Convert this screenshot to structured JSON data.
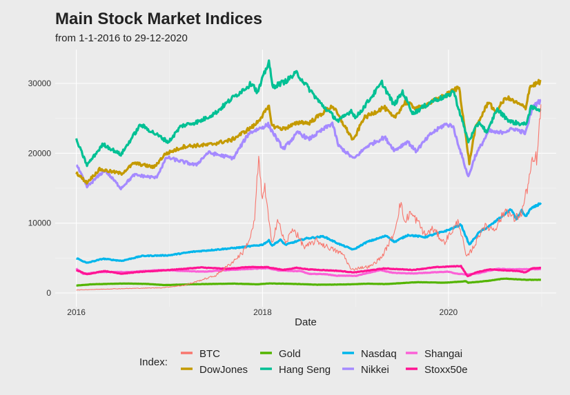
{
  "chart_data": {
    "type": "line",
    "title": "Main Stock Market Indices",
    "subtitle": "from 1-1-2016 to 29-12-2020",
    "xlabel": "Date",
    "ylabel": "",
    "x_range": [
      "2016-01-01",
      "2020-12-29"
    ],
    "ylim": [
      0,
      34000
    ],
    "x_ticks": [
      "2016",
      "2018",
      "2020"
    ],
    "y_ticks": [
      "0",
      "10000",
      "20000",
      "30000"
    ],
    "y_tick_values": [
      0,
      10000,
      20000,
      30000
    ],
    "grid": true,
    "legend_title": "Index:",
    "legend_position": "bottom",
    "series": [
      {
        "name": "BTC",
        "color": "#F8766D",
        "points": [
          [
            "2016-01-01",
            430
          ],
          [
            "2016-06-01",
            600
          ],
          [
            "2016-12-01",
            750
          ],
          [
            "2017-03-01",
            1100
          ],
          [
            "2017-05-01",
            1800
          ],
          [
            "2017-07-01",
            2500
          ],
          [
            "2017-09-01",
            4300
          ],
          [
            "2017-10-15",
            5800
          ],
          [
            "2017-11-15",
            8000
          ],
          [
            "2017-12-01",
            10500
          ],
          [
            "2017-12-17",
            19500
          ],
          [
            "2017-12-28",
            14000
          ],
          [
            "2018-01-10",
            15000
          ],
          [
            "2018-02-06",
            7000
          ],
          [
            "2018-03-01",
            10500
          ],
          [
            "2018-04-01",
            7000
          ],
          [
            "2018-05-01",
            9300
          ],
          [
            "2018-06-15",
            6500
          ],
          [
            "2018-08-01",
            7500
          ],
          [
            "2018-09-01",
            6800
          ],
          [
            "2018-11-15",
            5500
          ],
          [
            "2018-12-15",
            3300
          ],
          [
            "2019-01-15",
            3600
          ],
          [
            "2019-03-01",
            3800
          ],
          [
            "2019-04-15",
            5200
          ],
          [
            "2019-06-01",
            8500
          ],
          [
            "2019-06-26",
            12900
          ],
          [
            "2019-07-15",
            10000
          ],
          [
            "2019-08-01",
            11500
          ],
          [
            "2019-09-01",
            10300
          ],
          [
            "2019-10-01",
            8300
          ],
          [
            "2019-11-01",
            9200
          ],
          [
            "2019-12-15",
            7200
          ],
          [
            "2020-02-10",
            10300
          ],
          [
            "2020-03-12",
            5000
          ],
          [
            "2020-04-15",
            7000
          ],
          [
            "2020-05-15",
            9500
          ],
          [
            "2020-07-01",
            9200
          ],
          [
            "2020-08-15",
            12000
          ],
          [
            "2020-09-15",
            10500
          ],
          [
            "2020-10-15",
            11500
          ],
          [
            "2020-11-05",
            15000
          ],
          [
            "2020-11-25",
            18500
          ],
          [
            "2020-12-15",
            19500
          ],
          [
            "2020-12-29",
            27000
          ]
        ]
      },
      {
        "name": "DowJones",
        "color": "#C49A00",
        "points": [
          [
            "2016-01-01",
            17200
          ],
          [
            "2016-02-11",
            15800
          ],
          [
            "2016-04-01",
            17700
          ],
          [
            "2016-06-27",
            17100
          ],
          [
            "2016-08-15",
            18600
          ],
          [
            "2016-11-01",
            18000
          ],
          [
            "2016-12-15",
            19900
          ],
          [
            "2017-03-01",
            21000
          ],
          [
            "2017-06-01",
            21200
          ],
          [
            "2017-09-01",
            21900
          ],
          [
            "2017-12-01",
            24000
          ],
          [
            "2018-01-26",
            26600
          ],
          [
            "2018-02-08",
            23900
          ],
          [
            "2018-03-23",
            23500
          ],
          [
            "2018-06-01",
            24500
          ],
          [
            "2018-07-01",
            24300
          ],
          [
            "2018-10-03",
            26800
          ],
          [
            "2018-11-01",
            25000
          ],
          [
            "2018-12-24",
            21800
          ],
          [
            "2019-02-01",
            25000
          ],
          [
            "2019-04-23",
            26600
          ],
          [
            "2019-06-01",
            25000
          ],
          [
            "2019-07-15",
            27300
          ],
          [
            "2019-09-01",
            26400
          ],
          [
            "2019-11-01",
            27400
          ],
          [
            "2019-12-31",
            28500
          ],
          [
            "2020-02-12",
            29500
          ],
          [
            "2020-03-23",
            18600
          ],
          [
            "2020-04-15",
            23500
          ],
          [
            "2020-06-08",
            27500
          ],
          [
            "2020-07-01",
            25800
          ],
          [
            "2020-08-15",
            28000
          ],
          [
            "2020-10-30",
            26500
          ],
          [
            "2020-11-15",
            29500
          ],
          [
            "2020-12-29",
            30300
          ]
        ]
      },
      {
        "name": "Gold",
        "color": "#53B400",
        "points": [
          [
            "2016-01-01",
            1060
          ],
          [
            "2016-03-01",
            1240
          ],
          [
            "2016-07-06",
            1360
          ],
          [
            "2016-10-01",
            1300
          ],
          [
            "2016-12-15",
            1130
          ],
          [
            "2017-04-01",
            1250
          ],
          [
            "2017-09-08",
            1340
          ],
          [
            "2017-12-12",
            1240
          ],
          [
            "2018-01-25",
            1360
          ],
          [
            "2018-04-01",
            1330
          ],
          [
            "2018-08-15",
            1180
          ],
          [
            "2018-12-01",
            1230
          ],
          [
            "2019-02-15",
            1330
          ],
          [
            "2019-05-01",
            1280
          ],
          [
            "2019-09-04",
            1550
          ],
          [
            "2019-12-15",
            1470
          ],
          [
            "2020-03-09",
            1680
          ],
          [
            "2020-03-19",
            1470
          ],
          [
            "2020-06-01",
            1720
          ],
          [
            "2020-08-07",
            2060
          ],
          [
            "2020-11-01",
            1880
          ],
          [
            "2020-12-29",
            1880
          ]
        ]
      },
      {
        "name": "Hang Seng",
        "color": "#00C094",
        "points": [
          [
            "2016-01-01",
            21900
          ],
          [
            "2016-02-12",
            18300
          ],
          [
            "2016-04-15",
            21300
          ],
          [
            "2016-06-24",
            19800
          ],
          [
            "2016-09-09",
            24100
          ],
          [
            "2016-12-28",
            21600
          ],
          [
            "2017-02-15",
            23900
          ],
          [
            "2017-05-01",
            24600
          ],
          [
            "2017-07-01",
            25800
          ],
          [
            "2017-09-01",
            27800
          ],
          [
            "2017-11-22",
            30100
          ],
          [
            "2017-12-12",
            28600
          ],
          [
            "2018-01-26",
            33200
          ],
          [
            "2018-02-09",
            29500
          ],
          [
            "2018-04-01",
            30300
          ],
          [
            "2018-05-15",
            31500
          ],
          [
            "2018-08-15",
            27200
          ],
          [
            "2018-10-26",
            24600
          ],
          [
            "2018-12-15",
            26100
          ],
          [
            "2019-01-03",
            25100
          ],
          [
            "2019-04-15",
            30100
          ],
          [
            "2019-06-01",
            26900
          ],
          [
            "2019-07-05",
            28800
          ],
          [
            "2019-08-15",
            25700
          ],
          [
            "2019-11-05",
            27600
          ],
          [
            "2019-12-31",
            28200
          ],
          [
            "2020-01-20",
            29000
          ],
          [
            "2020-03-19",
            21700
          ],
          [
            "2020-05-01",
            24500
          ],
          [
            "2020-06-01",
            22900
          ],
          [
            "2020-07-08",
            26300
          ],
          [
            "2020-09-01",
            24500
          ],
          [
            "2020-10-30",
            24100
          ],
          [
            "2020-11-20",
            26500
          ],
          [
            "2020-12-29",
            26300
          ]
        ]
      },
      {
        "name": "Nasdaq",
        "color": "#00B6EB",
        "points": [
          [
            "2016-01-01",
            5000
          ],
          [
            "2016-02-11",
            4300
          ],
          [
            "2016-04-15",
            4900
          ],
          [
            "2016-06-27",
            4600
          ],
          [
            "2016-09-15",
            5300
          ],
          [
            "2016-12-30",
            5400
          ],
          [
            "2017-04-01",
            5900
          ],
          [
            "2017-07-01",
            6200
          ],
          [
            "2017-10-01",
            6500
          ],
          [
            "2017-12-31",
            6900
          ],
          [
            "2018-01-26",
            7500
          ],
          [
            "2018-02-08",
            6800
          ],
          [
            "2018-03-12",
            7600
          ],
          [
            "2018-04-01",
            6900
          ],
          [
            "2018-06-20",
            7800
          ],
          [
            "2018-08-29",
            8100
          ],
          [
            "2018-10-29",
            7000
          ],
          [
            "2018-12-24",
            6200
          ],
          [
            "2019-02-15",
            7300
          ],
          [
            "2019-05-03",
            8200
          ],
          [
            "2019-06-03",
            7300
          ],
          [
            "2019-07-26",
            8300
          ],
          [
            "2019-10-01",
            8000
          ],
          [
            "2019-12-31",
            9000
          ],
          [
            "2020-02-19",
            9800
          ],
          [
            "2020-03-23",
            6900
          ],
          [
            "2020-05-01",
            8700
          ],
          [
            "2020-06-15",
            9700
          ],
          [
            "2020-09-02",
            12000
          ],
          [
            "2020-09-23",
            10600
          ],
          [
            "2020-10-15",
            11800
          ],
          [
            "2020-10-30",
            10900
          ],
          [
            "2020-11-15",
            11900
          ],
          [
            "2020-12-29",
            12900
          ]
        ]
      },
      {
        "name": "Nikkei",
        "color": "#A58AFF",
        "points": [
          [
            "2016-01-01",
            18400
          ],
          [
            "2016-02-12",
            15200
          ],
          [
            "2016-04-22",
            17600
          ],
          [
            "2016-06-24",
            15000
          ],
          [
            "2016-08-15",
            16900
          ],
          [
            "2016-11-09",
            16500
          ],
          [
            "2016-12-21",
            19400
          ],
          [
            "2017-04-14",
            18300
          ],
          [
            "2017-06-01",
            20100
          ],
          [
            "2017-09-08",
            19300
          ],
          [
            "2017-11-09",
            22900
          ],
          [
            "2018-01-23",
            24100
          ],
          [
            "2018-03-23",
            20600
          ],
          [
            "2018-05-21",
            23000
          ],
          [
            "2018-07-01",
            22000
          ],
          [
            "2018-10-02",
            24300
          ],
          [
            "2018-10-26",
            21100
          ],
          [
            "2018-12-25",
            19200
          ],
          [
            "2019-02-15",
            21000
          ],
          [
            "2019-04-25",
            22300
          ],
          [
            "2019-06-04",
            20400
          ],
          [
            "2019-07-24",
            21700
          ],
          [
            "2019-08-26",
            20300
          ],
          [
            "2019-10-25",
            22800
          ],
          [
            "2019-12-17",
            24100
          ],
          [
            "2020-01-17",
            24000
          ],
          [
            "2020-03-19",
            16600
          ],
          [
            "2020-04-15",
            19600
          ],
          [
            "2020-06-08",
            23200
          ],
          [
            "2020-07-15",
            22900
          ],
          [
            "2020-09-15",
            23500
          ],
          [
            "2020-10-30",
            22900
          ],
          [
            "2020-11-25",
            26500
          ],
          [
            "2020-12-29",
            27600
          ]
        ]
      },
      {
        "name": "Shangai",
        "color": "#FB61D7",
        "points": [
          [
            "2016-01-01",
            3500
          ],
          [
            "2016-01-28",
            2700
          ],
          [
            "2016-04-01",
            3000
          ],
          [
            "2016-08-01",
            3000
          ],
          [
            "2016-11-29",
            3300
          ],
          [
            "2017-05-10",
            3050
          ],
          [
            "2017-08-01",
            3250
          ],
          [
            "2017-11-13",
            3450
          ],
          [
            "2018-01-24",
            3550
          ],
          [
            "2018-03-01",
            3250
          ],
          [
            "2018-06-01",
            3100
          ],
          [
            "2018-07-05",
            2730
          ],
          [
            "2018-09-01",
            2700
          ],
          [
            "2018-10-18",
            2480
          ],
          [
            "2019-01-03",
            2460
          ],
          [
            "2019-04-08",
            3270
          ],
          [
            "2019-06-01",
            2870
          ],
          [
            "2019-08-15",
            2800
          ],
          [
            "2019-12-31",
            3050
          ],
          [
            "2020-02-03",
            2750
          ],
          [
            "2020-03-19",
            2650
          ],
          [
            "2020-05-01",
            2850
          ],
          [
            "2020-07-09",
            3450
          ],
          [
            "2020-09-01",
            3400
          ],
          [
            "2020-12-29",
            3400
          ]
        ]
      },
      {
        "name": "Stoxx50e",
        "color": "#FF1493",
        "points": [
          [
            "2016-01-01",
            3280
          ],
          [
            "2016-02-11",
            2680
          ],
          [
            "2016-04-20",
            3150
          ],
          [
            "2016-06-27",
            2760
          ],
          [
            "2016-09-01",
            3000
          ],
          [
            "2016-12-30",
            3290
          ],
          [
            "2017-05-05",
            3650
          ],
          [
            "2017-08-15",
            3450
          ],
          [
            "2017-11-01",
            3700
          ],
          [
            "2018-01-23",
            3690
          ],
          [
            "2018-03-23",
            3300
          ],
          [
            "2018-05-15",
            3600
          ],
          [
            "2018-07-01",
            3380
          ],
          [
            "2018-10-26",
            3170
          ],
          [
            "2018-12-27",
            2940
          ],
          [
            "2019-04-23",
            3510
          ],
          [
            "2019-08-15",
            3300
          ],
          [
            "2019-11-15",
            3700
          ],
          [
            "2020-02-19",
            3860
          ],
          [
            "2020-03-16",
            2380
          ],
          [
            "2020-04-15",
            2900
          ],
          [
            "2020-06-08",
            3380
          ],
          [
            "2020-09-25",
            3150
          ],
          [
            "2020-10-30",
            2950
          ],
          [
            "2020-11-25",
            3530
          ],
          [
            "2020-12-29",
            3580
          ]
        ]
      }
    ]
  },
  "legend_rows": [
    [
      "BTC",
      "Gold",
      "Nasdaq",
      "Shangai"
    ],
    [
      "DowJones",
      "Hang Seng",
      "Nikkei",
      "Stoxx50e"
    ]
  ]
}
